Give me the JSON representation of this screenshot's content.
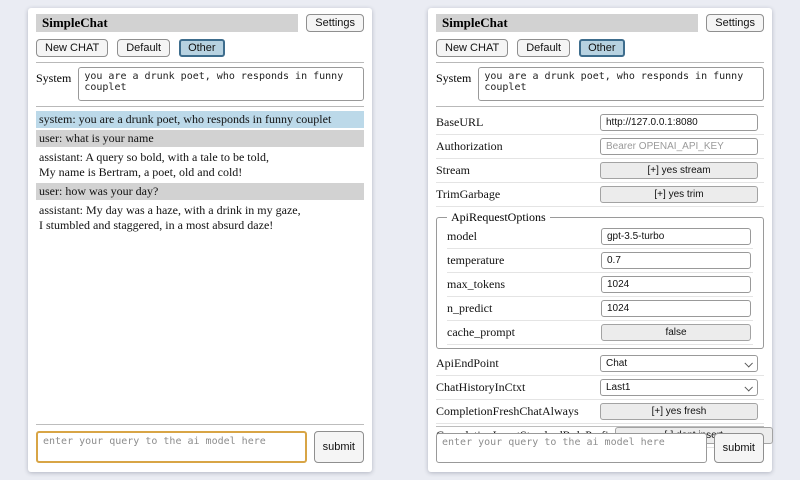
{
  "colors": {
    "page_bg": "#eaecf3",
    "titlebar_bg": "#d2d2d2",
    "active_session_bg": "#b7d2e1",
    "active_session_border": "#3e6d8d",
    "system_msg_bg": "#bcd9e9",
    "user_msg_bg": "#d2d2d2",
    "query_focus_border": "#d8a546"
  },
  "header": {
    "title": "SimpleChat",
    "settings_button": "Settings",
    "new_chat_button": "New CHAT",
    "session_buttons": [
      "Default",
      "Other"
    ],
    "active_session": "Other"
  },
  "system_prompt": {
    "label": "System",
    "value": "you are a drunk poet, who responds in funny couplet"
  },
  "chat": {
    "messages": [
      {
        "role": "system",
        "text": "system: you are a drunk poet, who responds in funny couplet"
      },
      {
        "role": "user",
        "text": "user: what is your name"
      },
      {
        "role": "assistant",
        "text": "assistant: A query so bold, with a tale to be told,\nMy name is Bertram, a poet, old and cold!"
      },
      {
        "role": "user",
        "text": "user: how was your day?"
      },
      {
        "role": "assistant",
        "text": "assistant: My day was a haze, with a drink in my gaze,\nI stumbled and staggered, in a most absurd daze!"
      }
    ]
  },
  "settings": {
    "top_fields": [
      {
        "name": "BaseURL",
        "control": "input",
        "value": "http://127.0.0.1:8080",
        "placeholder": ""
      },
      {
        "name": "Authorization",
        "control": "input",
        "value": "",
        "placeholder": "Bearer OPENAI_API_KEY"
      },
      {
        "name": "Stream",
        "control": "button",
        "label": "[+] yes stream"
      },
      {
        "name": "TrimGarbage",
        "control": "button",
        "label": "[+] yes trim"
      }
    ],
    "api_request_options": {
      "legend": "ApiRequestOptions",
      "fields": [
        {
          "name": "model",
          "control": "input",
          "value": "gpt-3.5-turbo",
          "placeholder": ""
        },
        {
          "name": "temperature",
          "control": "input",
          "value": "0.7",
          "placeholder": ""
        },
        {
          "name": "max_tokens",
          "control": "input",
          "value": "1024",
          "placeholder": ""
        },
        {
          "name": "n_predict",
          "control": "input",
          "value": "1024",
          "placeholder": ""
        },
        {
          "name": "cache_prompt",
          "control": "button",
          "label": "false"
        }
      ]
    },
    "bottom_fields": [
      {
        "name": "ApiEndPoint",
        "control": "select",
        "value": "Chat"
      },
      {
        "name": "ChatHistoryInCtxt",
        "control": "select",
        "value": "Last1"
      },
      {
        "name": "CompletionFreshChatAlways",
        "control": "button",
        "label": "[+] yes fresh"
      },
      {
        "name": "CompletionInsertStandardRolePrefix",
        "control": "button",
        "label": "[-] dont insert"
      }
    ]
  },
  "query": {
    "placeholder": "enter your query to the ai model here",
    "submit_label": "submit"
  }
}
